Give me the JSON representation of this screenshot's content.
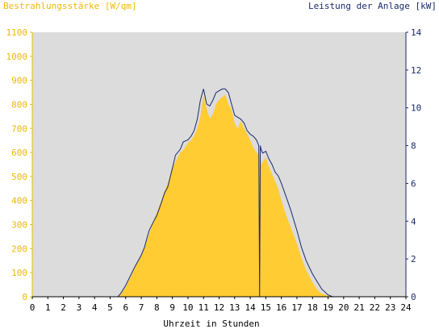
{
  "chart_data": {
    "type": "area",
    "title": "",
    "y_left_label": "Bestrahlungsstärke [W/qm]",
    "y_right_label": "Leistung der Anlage [kW]",
    "xlabel": "Uhrzeit in Stunden",
    "xlim": [
      0,
      24
    ],
    "ylim_left": [
      0,
      1100
    ],
    "ylim_right": [
      0,
      14
    ],
    "x_ticks": [
      "0",
      "1",
      "2",
      "3",
      "4",
      "5",
      "6",
      "7",
      "8",
      "9",
      "10",
      "11",
      "12",
      "13",
      "14",
      "15",
      "16",
      "17",
      "18",
      "19",
      "20",
      "21",
      "22",
      "23",
      "24"
    ],
    "y_left_ticks": [
      "0",
      "100",
      "200",
      "300",
      "400",
      "500",
      "600",
      "700",
      "800",
      "900",
      "1000",
      "1100"
    ],
    "y_right_ticks": [
      "0",
      "2",
      "4",
      "6",
      "8",
      "10",
      "12",
      "14"
    ],
    "grid": false,
    "colors": {
      "plot_background": "#dcdcdc",
      "irradiance_fill": "#ffcc33",
      "power_line": "#1a2a6a",
      "left_axis": "#f0b800",
      "right_axis": "#1a2a6a"
    },
    "series": [
      {
        "name": "Bestrahlungsstärke",
        "axis": "left",
        "x": [
          0,
          5.5,
          5.7,
          6.0,
          6.3,
          6.6,
          7.0,
          7.2,
          7.5,
          7.8,
          8.0,
          8.3,
          8.5,
          8.7,
          9.0,
          9.2,
          9.5,
          9.7,
          10.0,
          10.2,
          10.4,
          10.6,
          10.8,
          11.0,
          11.2,
          11.4,
          11.6,
          11.8,
          12.0,
          12.2,
          12.4,
          12.6,
          12.8,
          13.0,
          13.2,
          13.4,
          13.6,
          13.8,
          14.0,
          14.2,
          14.4,
          14.55,
          14.6,
          14.65,
          14.7,
          14.8,
          15.0,
          15.2,
          15.4,
          15.6,
          15.8,
          16.0,
          16.3,
          16.6,
          17.0,
          17.3,
          17.6,
          18.0,
          18.3,
          18.6,
          19.0,
          19.3,
          19.6,
          24
        ],
        "y": [
          0,
          0,
          10,
          40,
          80,
          120,
          170,
          200,
          260,
          320,
          350,
          400,
          440,
          470,
          540,
          560,
          600,
          610,
          640,
          650,
          670,
          700,
          750,
          840,
          780,
          740,
          760,
          800,
          820,
          830,
          840,
          800,
          780,
          720,
          700,
          730,
          700,
          680,
          650,
          620,
          600,
          590,
          0,
          590,
          550,
          560,
          580,
          540,
          510,
          480,
          450,
          400,
          340,
          290,
          220,
          160,
          110,
          60,
          30,
          12,
          5,
          0,
          0,
          0
        ]
      },
      {
        "name": "Leistung",
        "axis": "right",
        "x": [
          0,
          5.5,
          5.7,
          6.0,
          6.3,
          6.6,
          7.0,
          7.2,
          7.5,
          7.8,
          8.0,
          8.3,
          8.5,
          8.7,
          9.0,
          9.2,
          9.5,
          9.7,
          10.0,
          10.2,
          10.4,
          10.6,
          10.8,
          11.0,
          11.2,
          11.4,
          11.6,
          11.8,
          12.0,
          12.2,
          12.4,
          12.6,
          12.8,
          13.0,
          13.2,
          13.4,
          13.6,
          13.8,
          14.0,
          14.2,
          14.4,
          14.55,
          14.6,
          14.65,
          14.7,
          14.8,
          15.0,
          15.2,
          15.4,
          15.6,
          15.8,
          16.0,
          16.3,
          16.6,
          17.0,
          17.3,
          17.6,
          18.0,
          18.3,
          18.6,
          19.0,
          19.3,
          19.6,
          24
        ],
        "y": [
          0,
          0,
          0.2,
          0.6,
          1.1,
          1.6,
          2.2,
          2.6,
          3.5,
          4.0,
          4.3,
          5.0,
          5.5,
          5.8,
          6.8,
          7.5,
          7.8,
          8.2,
          8.3,
          8.5,
          8.8,
          9.4,
          10.4,
          11.0,
          10.2,
          10.1,
          10.4,
          10.8,
          10.9,
          11.0,
          11.0,
          10.8,
          10.2,
          9.6,
          9.5,
          9.4,
          9.2,
          8.8,
          8.6,
          8.5,
          8.3,
          8.0,
          0,
          8.0,
          7.8,
          7.6,
          7.7,
          7.3,
          7.0,
          6.6,
          6.4,
          6.0,
          5.3,
          4.6,
          3.5,
          2.6,
          1.9,
          1.2,
          0.8,
          0.4,
          0.1,
          0,
          0,
          0
        ]
      }
    ]
  }
}
